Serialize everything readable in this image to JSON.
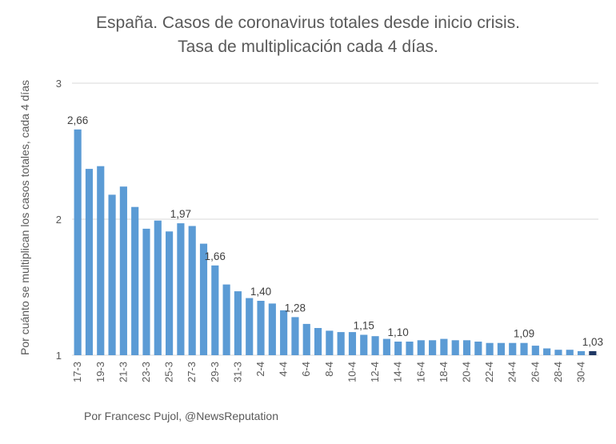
{
  "chart_data": {
    "type": "bar",
    "title": [
      "España. Casos de coronavirus totales desde inicio crisis.",
      "Tasa de multiplicación cada 4 días."
    ],
    "ylabel": "Por cuánto se multiplican los casos totales, cada 4 días",
    "xlabel": "",
    "ylim": [
      1,
      3
    ],
    "yticks": [
      1,
      2,
      3
    ],
    "grid": true,
    "colors": {
      "bar": "#5B9BD5",
      "last_bar": "#1F3864"
    },
    "categories": [
      "17-3",
      "18-3",
      "19-3",
      "20-3",
      "21-3",
      "22-3",
      "23-3",
      "24-3",
      "25-3",
      "26-3",
      "27-3",
      "28-3",
      "29-3",
      "30-3",
      "31-3",
      "1-4",
      "2-4",
      "3-4",
      "4-4",
      "5-4",
      "6-4",
      "7-4",
      "8-4",
      "9-4",
      "10-4",
      "11-4",
      "12-4",
      "13-4",
      "14-4",
      "15-4",
      "16-4",
      "17-4",
      "18-4",
      "19-4",
      "20-4",
      "21-4",
      "22-4",
      "23-4",
      "24-4",
      "25-4",
      "26-4",
      "27-4",
      "28-4",
      "29-4",
      "30-4",
      "1-5"
    ],
    "tick_labels": [
      "17-3",
      "19-3",
      "21-3",
      "23-3",
      "25-3",
      "27-3",
      "29-3",
      "31-3",
      "2-4",
      "4-4",
      "6-4",
      "8-4",
      "10-4",
      "12-4",
      "14-4",
      "16-4",
      "18-4",
      "20-4",
      "22-4",
      "24-4",
      "26-4",
      "28-4",
      "30-4"
    ],
    "values": [
      2.66,
      2.37,
      2.39,
      2.18,
      2.24,
      2.09,
      1.93,
      1.99,
      1.91,
      1.97,
      1.95,
      1.82,
      1.66,
      1.52,
      1.47,
      1.42,
      1.4,
      1.38,
      1.33,
      1.28,
      1.23,
      1.2,
      1.18,
      1.17,
      1.17,
      1.15,
      1.14,
      1.12,
      1.1,
      1.1,
      1.11,
      1.11,
      1.12,
      1.11,
      1.11,
      1.1,
      1.09,
      1.09,
      1.09,
      1.09,
      1.07,
      1.05,
      1.04,
      1.04,
      1.03,
      1.03
    ],
    "data_labels": [
      {
        "index": 0,
        "text": "2,66"
      },
      {
        "index": 9,
        "text": "1,97"
      },
      {
        "index": 12,
        "text": "1,66"
      },
      {
        "index": 16,
        "text": "1,40"
      },
      {
        "index": 19,
        "text": "1,28"
      },
      {
        "index": 25,
        "text": "1,15"
      },
      {
        "index": 28,
        "text": "1,10"
      },
      {
        "index": 39,
        "text": "1,09"
      },
      {
        "index": 45,
        "text": "1,03"
      }
    ]
  },
  "credit": "Por Francesc Pujol, @NewsReputation"
}
